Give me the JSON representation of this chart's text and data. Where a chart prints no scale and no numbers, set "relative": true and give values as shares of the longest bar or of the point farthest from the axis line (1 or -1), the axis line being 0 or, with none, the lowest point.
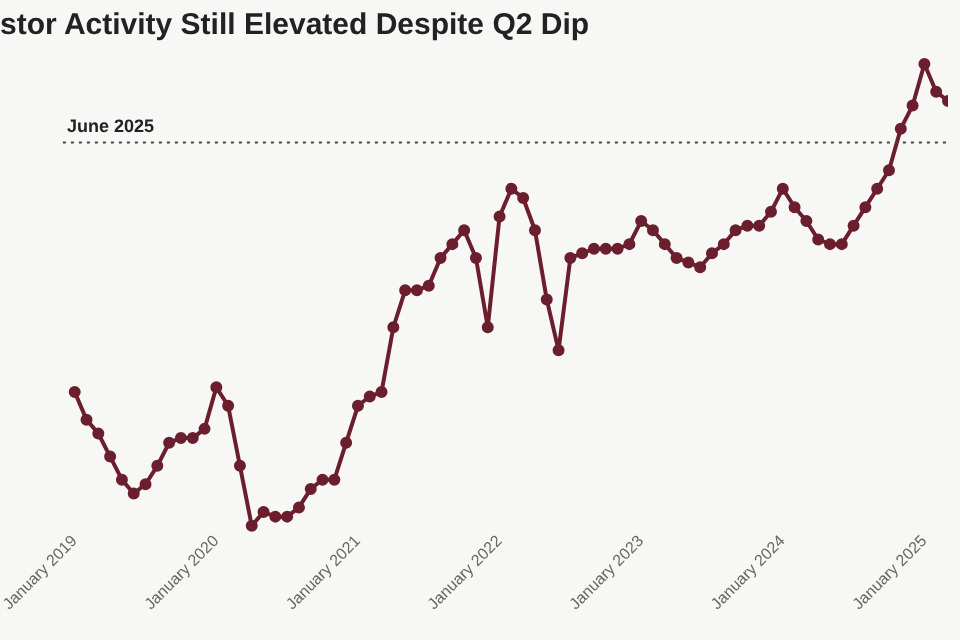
{
  "chart_data": {
    "type": "line",
    "title": "stor Activity Still Elevated Despite Q2 Dip",
    "relative": true,
    "x": [
      "2019-01",
      "2019-02",
      "2019-03",
      "2019-04",
      "2019-05",
      "2019-06",
      "2019-07",
      "2019-08",
      "2019-09",
      "2019-10",
      "2019-11",
      "2019-12",
      "2020-01",
      "2020-02",
      "2020-03",
      "2020-04",
      "2020-05",
      "2020-06",
      "2020-07",
      "2020-08",
      "2020-09",
      "2020-10",
      "2020-11",
      "2020-12",
      "2021-01",
      "2021-02",
      "2021-03",
      "2021-04",
      "2021-05",
      "2021-06",
      "2021-07",
      "2021-08",
      "2021-09",
      "2021-10",
      "2021-11",
      "2021-12",
      "2022-01",
      "2022-02",
      "2022-03",
      "2022-04",
      "2022-05",
      "2022-06",
      "2022-07",
      "2022-08",
      "2022-09",
      "2022-10",
      "2022-11",
      "2022-12",
      "2023-01",
      "2023-02",
      "2023-03",
      "2023-04",
      "2023-05",
      "2023-06",
      "2023-07",
      "2023-08",
      "2023-09",
      "2023-10",
      "2023-11",
      "2023-12",
      "2024-01",
      "2024-02",
      "2024-03",
      "2024-04",
      "2024-05",
      "2024-06",
      "2024-07",
      "2024-08",
      "2024-09",
      "2024-10",
      "2024-11",
      "2024-12",
      "2025-01",
      "2025-02",
      "2025-03"
    ],
    "series": [
      {
        "color": "#6b1f2e",
        "values": [
          0.29,
          0.23,
          0.2,
          0.15,
          0.1,
          0.07,
          0.09,
          0.13,
          0.18,
          0.19,
          0.19,
          0.21,
          0.3,
          0.26,
          0.13,
          0,
          0.03,
          0.02,
          0.02,
          0.04,
          0.08,
          0.1,
          0.1,
          0.18,
          0.26,
          0.28,
          0.29,
          0.43,
          0.51,
          0.51,
          0.52,
          0.58,
          0.61,
          0.64,
          0.58,
          0.43,
          0.67,
          0.73,
          0.71,
          0.64,
          0.49,
          0.38,
          0.58,
          0.59,
          0.6,
          0.6,
          0.6,
          0.61,
          0.66,
          0.64,
          0.61,
          0.58,
          0.57,
          0.56,
          0.59,
          0.61,
          0.64,
          0.65,
          0.65,
          0.68,
          0.73,
          0.69,
          0.66,
          0.62,
          0.61,
          0.61,
          0.65,
          0.69,
          0.73,
          0.77,
          0.86,
          0.91,
          1,
          0.94,
          0.92
        ]
      }
    ],
    "xlim": [
      "2018-12",
      "2025-03"
    ],
    "xticks": [
      {
        "value": "2019-01",
        "label": "January 2019"
      },
      {
        "value": "2020-01",
        "label": "January 2020"
      },
      {
        "value": "2021-01",
        "label": "January 2021"
      },
      {
        "value": "2022-01",
        "label": "January 2022"
      },
      {
        "value": "2023-01",
        "label": "January 2023"
      },
      {
        "value": "2024-01",
        "label": "January 2024"
      },
      {
        "value": "2025-01",
        "label": "January 2025"
      }
    ],
    "ref_lines": [
      {
        "axis": "y",
        "value": 0.83,
        "label": "June 2025",
        "color": "#444444",
        "line_style": "dotted"
      }
    ],
    "marker": "circle",
    "line_style": "solid",
    "legend": false
  }
}
